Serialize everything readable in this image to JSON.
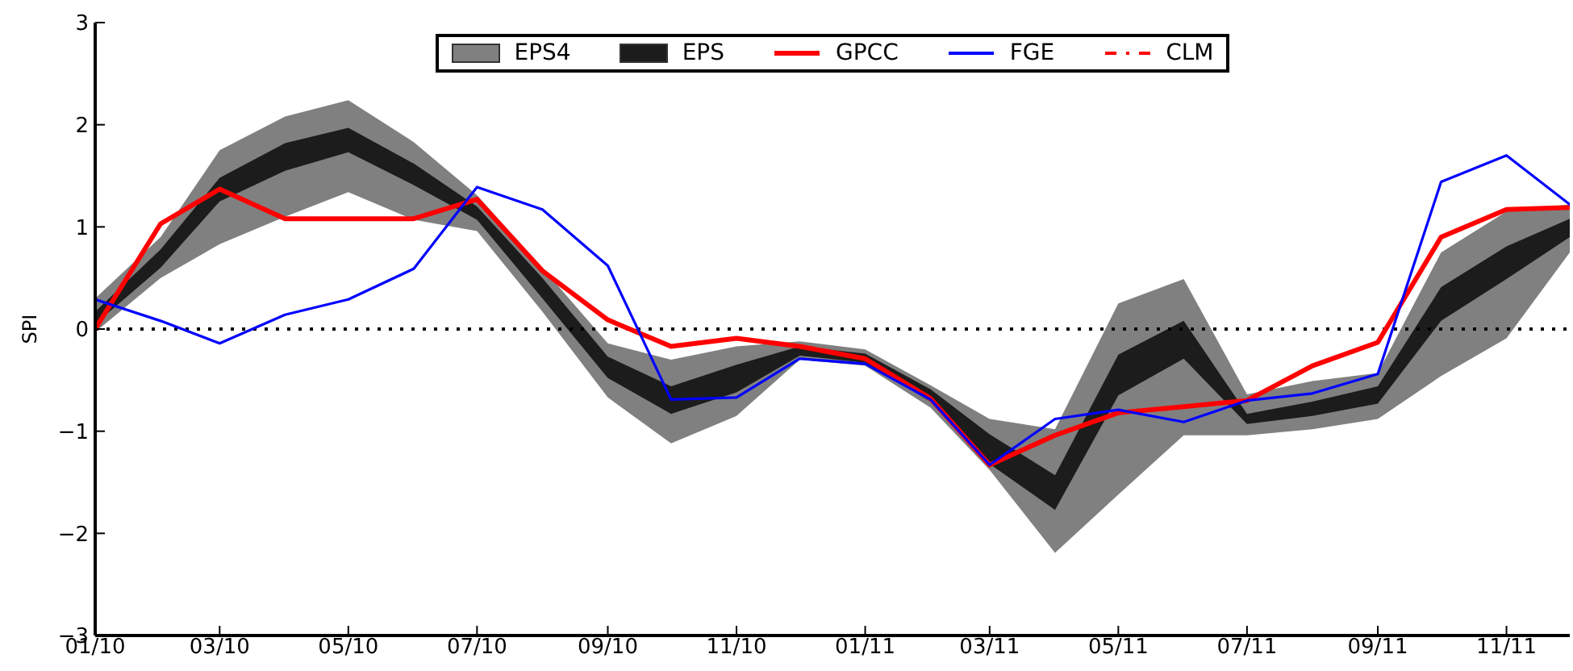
{
  "chart_data": {
    "type": "line",
    "ylabel": "SPI",
    "x": [
      "2010-01",
      "2010-02",
      "2010-03",
      "2010-04",
      "2010-05",
      "2010-06",
      "2010-07",
      "2010-08",
      "2010-09",
      "2010-10",
      "2010-11",
      "2010-12",
      "2011-01",
      "2011-02",
      "2011-03",
      "2011-04",
      "2011-05",
      "2011-06",
      "2011-07",
      "2011-08",
      "2011-09",
      "2011-10",
      "2011-11",
      "2011-12"
    ],
    "series": [
      {
        "name": "EPS4",
        "type": "area",
        "color": "#808080",
        "values": [
          null,
          null,
          null,
          null,
          null,
          null,
          null,
          null,
          null,
          null,
          null,
          null,
          null,
          null,
          null,
          null,
          null,
          null,
          null,
          null,
          null,
          null,
          null,
          null
        ],
        "lower": [
          -0.03,
          0.5,
          0.83,
          1.1,
          1.34,
          1.07,
          0.96,
          0.17,
          -0.67,
          -1.12,
          -0.85,
          -0.3,
          -0.36,
          -0.77,
          -1.38,
          -2.19,
          -1.62,
          -1.04,
          -1.04,
          -0.98,
          -0.88,
          -0.46,
          -0.09,
          0.75
        ],
        "upper": [
          0.3,
          0.9,
          1.75,
          2.08,
          2.24,
          1.83,
          1.31,
          0.6,
          -0.14,
          -0.3,
          -0.17,
          -0.12,
          -0.2,
          -0.55,
          -0.88,
          -0.98,
          0.25,
          0.49,
          -0.64,
          -0.51,
          -0.43,
          0.75,
          1.15,
          1.22
        ]
      },
      {
        "name": "EPS",
        "type": "area",
        "color": "#1c1c1c",
        "values": [
          null,
          null,
          null,
          null,
          null,
          null,
          null,
          null,
          null,
          null,
          null,
          null,
          null,
          null,
          null,
          null,
          null,
          null,
          null,
          null,
          null,
          null,
          null,
          null
        ],
        "lower": [
          0.05,
          0.6,
          1.25,
          1.55,
          1.73,
          1.41,
          1.07,
          0.3,
          -0.48,
          -0.83,
          -0.62,
          -0.26,
          -0.33,
          -0.71,
          -1.32,
          -1.77,
          -0.65,
          -0.29,
          -0.93,
          -0.85,
          -0.73,
          0.08,
          0.49,
          0.9
        ],
        "upper": [
          0.17,
          0.78,
          1.48,
          1.82,
          1.97,
          1.62,
          1.2,
          0.5,
          -0.27,
          -0.56,
          -0.35,
          -0.17,
          -0.24,
          -0.59,
          -1.03,
          -1.43,
          -0.25,
          0.08,
          -0.83,
          -0.71,
          -0.56,
          0.41,
          0.81,
          1.08
        ]
      },
      {
        "name": "GPCC",
        "color": "#ff0000",
        "values": [
          0,
          1.03,
          1.37,
          1.08,
          1.08,
          1.08,
          1.27,
          0.57,
          0.09,
          -0.17,
          -0.09,
          -0.17,
          -0.29,
          -0.68,
          -1.33,
          -1.04,
          -0.82,
          -0.76,
          -0.7,
          -0.36,
          -0.13,
          0.9,
          1.17,
          1.19
        ]
      },
      {
        "name": "FGE",
        "color": "#0000ff",
        "values": [
          0.29,
          0.08,
          -0.14,
          0.14,
          0.29,
          0.59,
          1.39,
          1.17,
          0.62,
          -0.69,
          -0.67,
          -0.29,
          -0.34,
          -0.69,
          -1.33,
          -0.88,
          -0.79,
          -0.91,
          -0.7,
          -0.63,
          -0.44,
          1.44,
          1.7,
          1.22
        ]
      },
      {
        "name": "CLM",
        "color": "#ff0000",
        "line_style": "dashdot",
        "values": [
          null,
          null,
          null,
          null,
          null,
          null,
          null,
          null,
          null,
          null,
          null,
          null,
          null,
          null,
          null,
          null,
          null,
          null,
          null,
          null,
          null,
          null,
          null,
          null
        ]
      }
    ],
    "xlim": [
      "2010-01",
      "2011-12"
    ],
    "xticks": [
      {
        "value": "2010-01",
        "label": "01/10"
      },
      {
        "value": "2010-03",
        "label": "03/10"
      },
      {
        "value": "2010-05",
        "label": "05/10"
      },
      {
        "value": "2010-07",
        "label": "07/10"
      },
      {
        "value": "2010-09",
        "label": "09/10"
      },
      {
        "value": "2010-11",
        "label": "11/10"
      },
      {
        "value": "2011-01",
        "label": "01/11"
      },
      {
        "value": "2011-03",
        "label": "03/11"
      },
      {
        "value": "2011-05",
        "label": "05/11"
      },
      {
        "value": "2011-07",
        "label": "07/11"
      },
      {
        "value": "2011-09",
        "label": "09/11"
      },
      {
        "value": "2011-11",
        "label": "11/11"
      }
    ],
    "ylim": [
      -3,
      3
    ],
    "yticks": [
      -3,
      -2,
      -1,
      0,
      1,
      2,
      3
    ],
    "ref_lines": [
      {
        "axis": "y",
        "value": 0,
        "color": "#000000",
        "line_style": "dotted"
      }
    ],
    "legend": "top",
    "marker": "none"
  }
}
